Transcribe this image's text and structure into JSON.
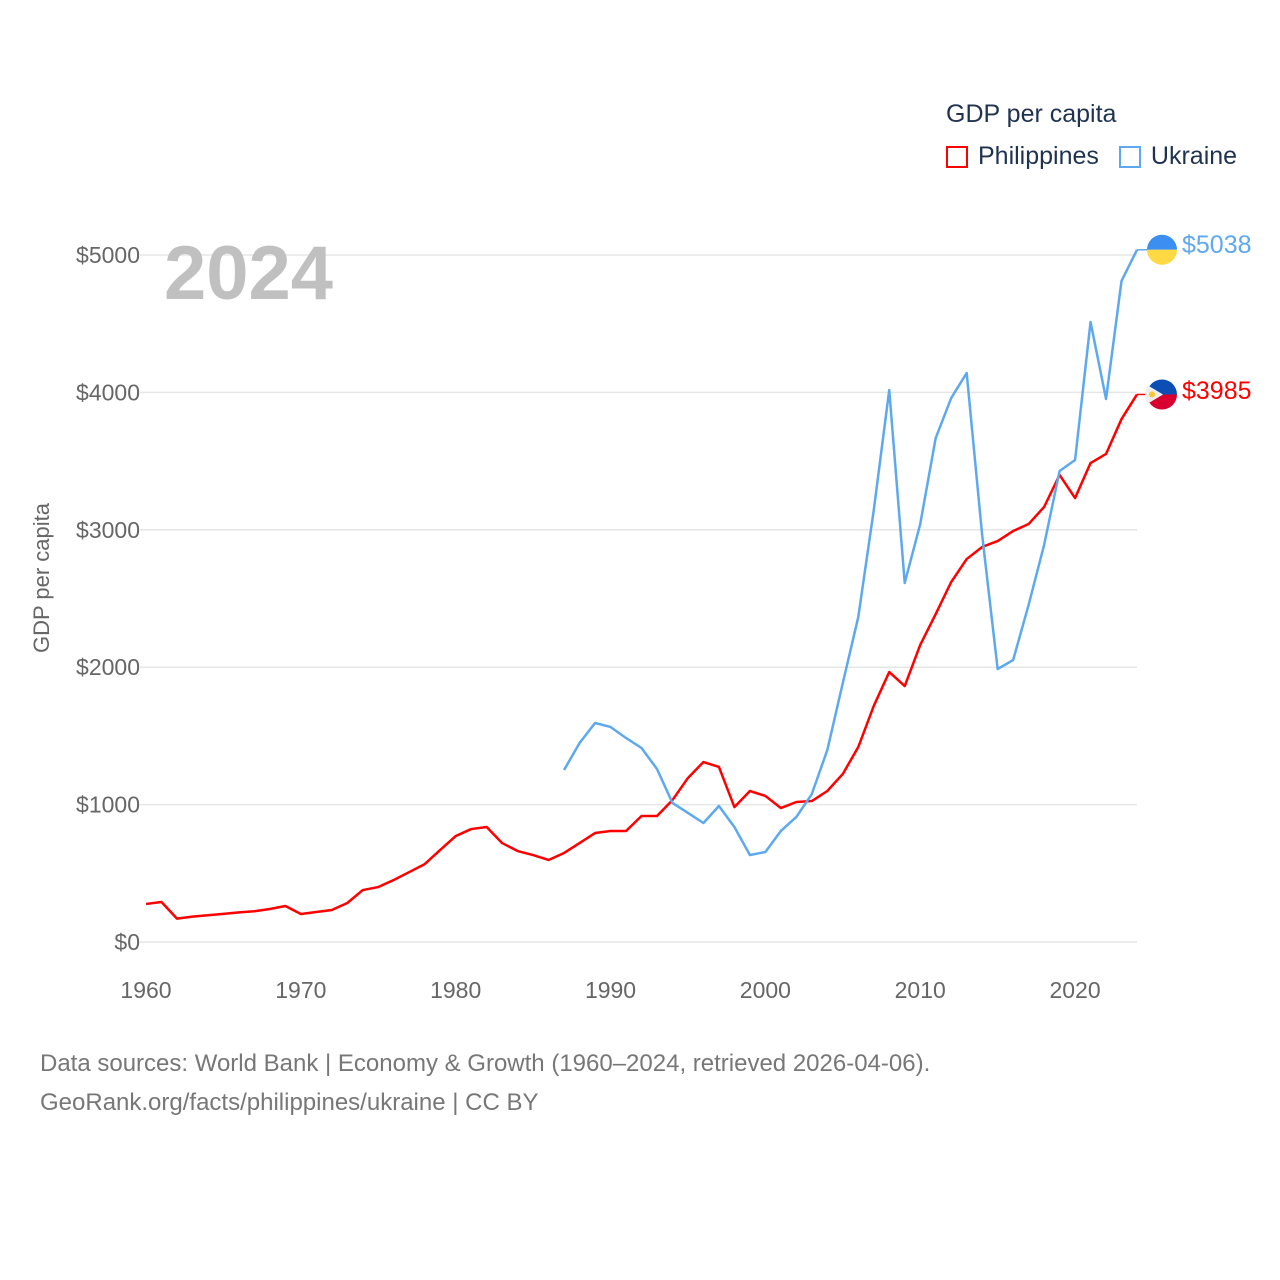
{
  "chart_data": {
    "type": "line",
    "title": "",
    "year_label": "2024",
    "ylabel": "GDP per capita",
    "xlabel": "",
    "xlim": [
      1960,
      2024
    ],
    "ylim": [
      0,
      5000
    ],
    "xticks": [
      "1960",
      "1970",
      "1980",
      "1990",
      "2000",
      "2010",
      "2020"
    ],
    "yticks": [
      "$0",
      "$1000",
      "$2000",
      "$3000",
      "$4000",
      "$5000"
    ],
    "grid": true,
    "legend": {
      "title": "GDP per capita",
      "placement": "top-right"
    },
    "series": [
      {
        "name": "Philippines",
        "color": "#ff0000",
        "end_label": "$3985",
        "start_year": 1960,
        "values": [
          277,
          291,
          170,
          185,
          195,
          205,
          216,
          224,
          240,
          262,
          204,
          218,
          233,
          284,
          378,
          400,
          451,
          509,
          567,
          670,
          771,
          822,
          837,
          720,
          662,
          633,
          597,
          648,
          720,
          793,
          808,
          808,
          917,
          917,
          1033,
          1194,
          1310,
          1274,
          982,
          1099,
          1063,
          975,
          1019,
          1026,
          1099,
          1223,
          1419,
          1718,
          1965,
          1863,
          2162,
          2387,
          2620,
          2787,
          2875,
          2918,
          2991,
          3042,
          3166,
          3399,
          3231,
          3486,
          3552,
          3806,
          3985
        ]
      },
      {
        "name": "Ukraine",
        "color": "#5ea9ee",
        "end_label": "$5038",
        "start_year": 1987,
        "values": [
          1252,
          1448,
          1594,
          1565,
          1485,
          1412,
          1259,
          1012,
          939,
          866,
          990,
          837,
          633,
          655,
          808,
          910,
          1077,
          1397,
          1885,
          2365,
          3144,
          4017,
          2613,
          3042,
          3668,
          3959,
          4141,
          2962,
          1987,
          2052,
          2453,
          2889,
          3428,
          3508,
          4512,
          3952,
          4811,
          5038
        ]
      }
    ]
  },
  "footer": {
    "line1": "Data sources: World Bank | Economy & Growth (1960–2024, retrieved 2026-04-06).",
    "line2": "GeoRank.org/facts/philippines/ukraine | CC BY"
  }
}
